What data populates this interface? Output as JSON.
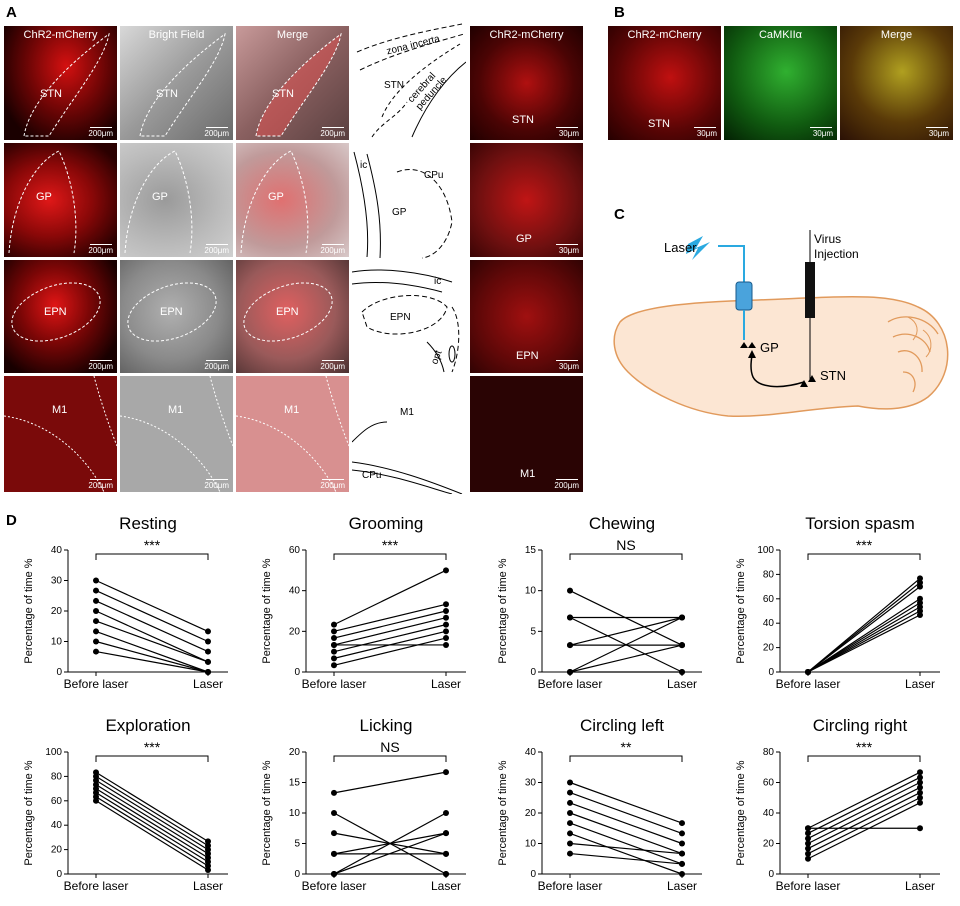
{
  "panels": {
    "a": "A",
    "b": "B",
    "c": "C",
    "d": "D"
  },
  "panel_a": {
    "column_titles": {
      "red": "ChR2-mCherry",
      "bf": "Bright Field",
      "merge": "Merge",
      "zoom": "ChR2-mCherry"
    },
    "rows": [
      {
        "region": "STN",
        "scale": "200μm",
        "zoom_scale": "30μm"
      },
      {
        "region": "GP",
        "scale": "200μm",
        "zoom_scale": "30μm"
      },
      {
        "region": "EPN",
        "scale": "200μm",
        "zoom_scale": "30μm"
      },
      {
        "region": "M1",
        "scale": "200μm",
        "zoom_scale": "200μm"
      }
    ],
    "atlas_labels": {
      "zona_incerta": "zona incerta",
      "stn": "STN",
      "cerebral_peduncle": "cerebral peduncle",
      "ic1": "ic",
      "cpu1": "CPu",
      "gp": "GP",
      "ic2": "ic",
      "epn": "EPN",
      "opt": "opt",
      "m1": "M1",
      "cpu2": "CPu"
    }
  },
  "panel_b": {
    "titles": [
      "ChR2-mCherry",
      "CaMKIIα",
      "Merge"
    ],
    "region": "STN",
    "scales": [
      "30μm",
      "30μm",
      "30μm"
    ]
  },
  "panel_c": {
    "laser": "Laser",
    "virus_line1": "Virus",
    "virus_line2": "Injection",
    "gp": "GP",
    "stn": "STN"
  },
  "chart_data": [
    {
      "type": "line",
      "title": "Resting",
      "ylabel": "Percentage of time %",
      "categories": [
        "Before laser",
        "Laser"
      ],
      "ylim": [
        0,
        40
      ],
      "yticks": [
        0,
        10,
        20,
        30,
        40
      ],
      "sig": "***",
      "pairs": [
        [
          30,
          13.3
        ],
        [
          26.7,
          10
        ],
        [
          23.3,
          6.7
        ],
        [
          20,
          3.3
        ],
        [
          16.7,
          3.3
        ],
        [
          13.3,
          0
        ],
        [
          10,
          0
        ],
        [
          6.7,
          0
        ]
      ]
    },
    {
      "type": "line",
      "title": "Grooming",
      "ylabel": "Percentage of time %",
      "categories": [
        "Before laser",
        "Laser"
      ],
      "ylim": [
        0,
        60
      ],
      "yticks": [
        0,
        20,
        40,
        60
      ],
      "sig": "***",
      "pairs": [
        [
          23.3,
          50
        ],
        [
          20,
          33.3
        ],
        [
          16.7,
          30
        ],
        [
          13.3,
          26.7
        ],
        [
          10,
          23.3
        ],
        [
          6.7,
          20
        ],
        [
          3.3,
          16.7
        ],
        [
          13.3,
          13.3
        ]
      ]
    },
    {
      "type": "line",
      "title": "Chewing",
      "ylabel": "Percentage of time %",
      "categories": [
        "Before laser",
        "Laser"
      ],
      "ylim": [
        0,
        15
      ],
      "yticks": [
        0,
        5,
        10,
        15
      ],
      "sig": "NS",
      "pairs": [
        [
          10,
          3.3
        ],
        [
          6.7,
          6.7
        ],
        [
          6.7,
          0
        ],
        [
          3.3,
          6.7
        ],
        [
          3.3,
          3.3
        ],
        [
          0,
          6.7
        ],
        [
          0,
          3.3
        ],
        [
          0,
          0
        ]
      ]
    },
    {
      "type": "line",
      "title": "Torsion spasm",
      "ylabel": "Percentage of time %",
      "categories": [
        "Before laser",
        "Laser"
      ],
      "ylim": [
        0,
        100
      ],
      "yticks": [
        0,
        20,
        40,
        60,
        80,
        100
      ],
      "sig": "***",
      "pairs": [
        [
          0,
          76.7
        ],
        [
          0,
          73.3
        ],
        [
          0,
          70
        ],
        [
          0,
          60
        ],
        [
          0,
          56.7
        ],
        [
          0,
          53.3
        ],
        [
          0,
          50
        ],
        [
          0,
          46.7
        ]
      ]
    },
    {
      "type": "line",
      "title": "Exploration",
      "ylabel": "Percentage of time %",
      "categories": [
        "Before laser",
        "Laser"
      ],
      "ylim": [
        0,
        100
      ],
      "yticks": [
        0,
        20,
        40,
        60,
        80,
        100
      ],
      "sig": "***",
      "pairs": [
        [
          83.3,
          26.7
        ],
        [
          80,
          23.3
        ],
        [
          76.7,
          20
        ],
        [
          73.3,
          16.7
        ],
        [
          70,
          13.3
        ],
        [
          66.7,
          10
        ],
        [
          63.3,
          6.7
        ],
        [
          60,
          3.3
        ]
      ]
    },
    {
      "type": "line",
      "title": "Licking",
      "ylabel": "Percentage of time %",
      "categories": [
        "Before laser",
        "Laser"
      ],
      "ylim": [
        0,
        20
      ],
      "yticks": [
        0,
        5,
        10,
        15,
        20
      ],
      "sig": "NS",
      "pairs": [
        [
          13.3,
          16.7
        ],
        [
          10,
          0
        ],
        [
          6.7,
          3.3
        ],
        [
          3.3,
          6.7
        ],
        [
          3.3,
          3.3
        ],
        [
          0,
          10
        ],
        [
          0,
          6.7
        ],
        [
          0,
          0
        ]
      ]
    },
    {
      "type": "line",
      "title": "Circling left",
      "ylabel": "Percentage of time %",
      "categories": [
        "Before laser",
        "Laser"
      ],
      "ylim": [
        0,
        40
      ],
      "yticks": [
        0,
        10,
        20,
        30,
        40
      ],
      "sig": "**",
      "pairs": [
        [
          30,
          16.7
        ],
        [
          26.7,
          13.3
        ],
        [
          23.3,
          10
        ],
        [
          20,
          6.7
        ],
        [
          16.7,
          3.3
        ],
        [
          13.3,
          0
        ],
        [
          10,
          6.7
        ],
        [
          6.7,
          3.3
        ]
      ]
    },
    {
      "type": "line",
      "title": "Circling right",
      "ylabel": "Percentage of time %",
      "categories": [
        "Before laser",
        "Laser"
      ],
      "ylim": [
        0,
        80
      ],
      "yticks": [
        0,
        20,
        40,
        60,
        80
      ],
      "sig": "***",
      "pairs": [
        [
          30,
          66.7
        ],
        [
          26.7,
          63.3
        ],
        [
          23.3,
          60
        ],
        [
          20,
          56.7
        ],
        [
          16.7,
          53.3
        ],
        [
          13.3,
          50
        ],
        [
          10,
          46.7
        ],
        [
          30,
          30
        ]
      ]
    }
  ]
}
